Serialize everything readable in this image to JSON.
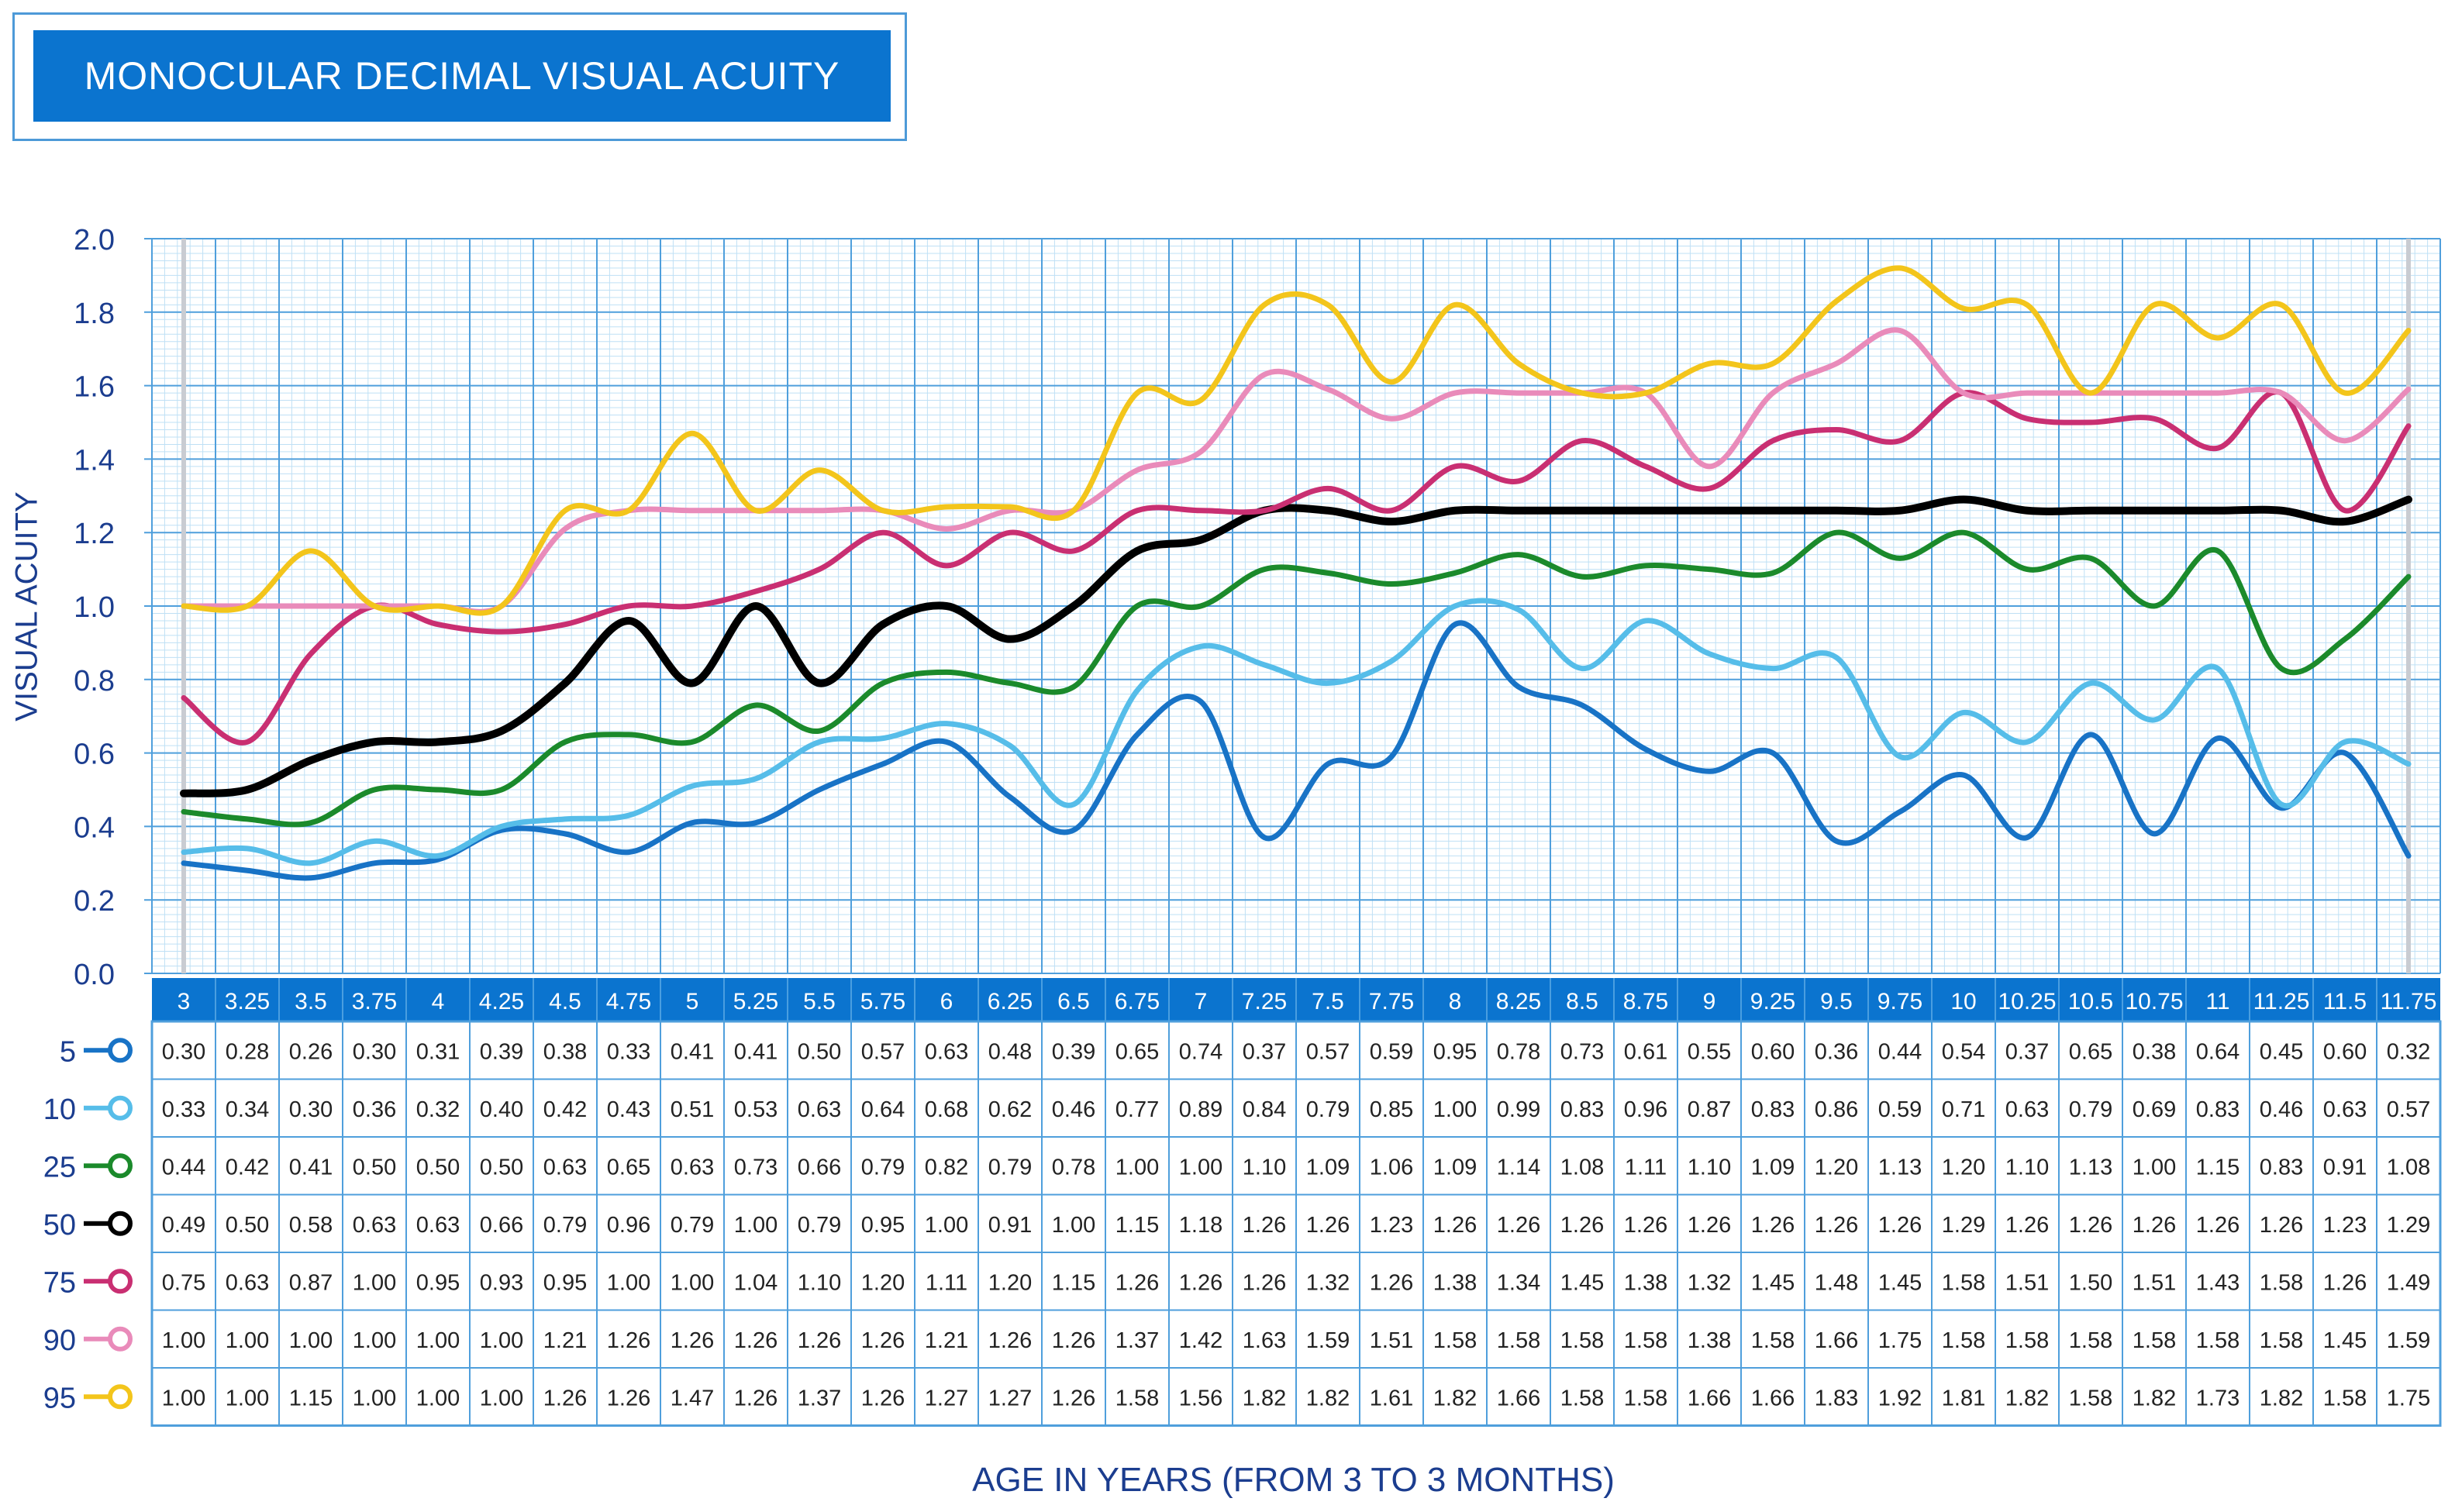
{
  "title": "MONOCULAR DECIMAL VISUAL ACUITY",
  "chart_data": {
    "type": "line",
    "title": "MONOCULAR DECIMAL VISUAL ACUITY",
    "xlabel": "AGE IN YEARS (FROM 3 TO 3 MONTHS)",
    "ylabel": "VISUAL ACUITY",
    "ylim": [
      0,
      2
    ],
    "yticks": [
      "0.0",
      "0.2",
      "0.4",
      "0.6",
      "0.8",
      "1.0",
      "1.2",
      "1.4",
      "1.6",
      "1.8",
      "2.0"
    ],
    "grid": true,
    "legend": "left of data table",
    "x": [
      "3",
      "3.25",
      "3.5",
      "3.75",
      "4",
      "4.25",
      "4.5",
      "4.75",
      "5",
      "5.25",
      "5.5",
      "5.75",
      "6",
      "6.25",
      "6.5",
      "6.75",
      "7",
      "7.25",
      "7.5",
      "7.75",
      "8",
      "8.25",
      "8.5",
      "8.75",
      "9",
      "9.25",
      "9.5",
      "9.75",
      "10",
      "10.25",
      "10.5",
      "10.75",
      "11",
      "11.25",
      "11.5",
      "11.75"
    ],
    "series": [
      {
        "name": "5",
        "color": "#1873c6",
        "values": [
          "0.30",
          "0.28",
          "0.26",
          "0.30",
          "0.31",
          "0.39",
          "0.38",
          "0.33",
          "0.41",
          "0.41",
          "0.50",
          "0.57",
          "0.63",
          "0.48",
          "0.39",
          "0.65",
          "0.74",
          "0.37",
          "0.57",
          "0.59",
          "0.95",
          "0.78",
          "0.73",
          "0.61",
          "0.55",
          "0.60",
          "0.36",
          "0.44",
          "0.54",
          "0.37",
          "0.65",
          "0.38",
          "0.64",
          "0.45",
          "0.60",
          "0.32"
        ]
      },
      {
        "name": "10",
        "color": "#56bde9",
        "values": [
          "0.33",
          "0.34",
          "0.30",
          "0.36",
          "0.32",
          "0.40",
          "0.42",
          "0.43",
          "0.51",
          "0.53",
          "0.63",
          "0.64",
          "0.68",
          "0.62",
          "0.46",
          "0.77",
          "0.89",
          "0.84",
          "0.79",
          "0.85",
          "1.00",
          "0.99",
          "0.83",
          "0.96",
          "0.87",
          "0.83",
          "0.86",
          "0.59",
          "0.71",
          "0.63",
          "0.79",
          "0.69",
          "0.83",
          "0.46",
          "0.63",
          "0.57"
        ]
      },
      {
        "name": "25",
        "color": "#1b8a2b",
        "values": [
          "0.44",
          "0.42",
          "0.41",
          "0.50",
          "0.50",
          "0.50",
          "0.63",
          "0.65",
          "0.63",
          "0.73",
          "0.66",
          "0.79",
          "0.82",
          "0.79",
          "0.78",
          "1.00",
          "1.00",
          "1.10",
          "1.09",
          "1.06",
          "1.09",
          "1.14",
          "1.08",
          "1.11",
          "1.10",
          "1.09",
          "1.20",
          "1.13",
          "1.20",
          "1.10",
          "1.13",
          "1.00",
          "1.15",
          "0.83",
          "0.91",
          "1.08"
        ]
      },
      {
        "name": "50",
        "color": "#000000",
        "values": [
          "0.49",
          "0.50",
          "0.58",
          "0.63",
          "0.63",
          "0.66",
          "0.79",
          "0.96",
          "0.79",
          "1.00",
          "0.79",
          "0.95",
          "1.00",
          "0.91",
          "1.00",
          "1.15",
          "1.18",
          "1.26",
          "1.26",
          "1.23",
          "1.26",
          "1.26",
          "1.26",
          "1.26",
          "1.26",
          "1.26",
          "1.26",
          "1.26",
          "1.29",
          "1.26",
          "1.26",
          "1.26",
          "1.26",
          "1.26",
          "1.23",
          "1.29"
        ]
      },
      {
        "name": "75",
        "color": "#c92f72",
        "values": [
          "0.75",
          "0.63",
          "0.87",
          "1.00",
          "0.95",
          "0.93",
          "0.95",
          "1.00",
          "1.00",
          "1.04",
          "1.10",
          "1.20",
          "1.11",
          "1.20",
          "1.15",
          "1.26",
          "1.26",
          "1.26",
          "1.32",
          "1.26",
          "1.38",
          "1.34",
          "1.45",
          "1.38",
          "1.32",
          "1.45",
          "1.48",
          "1.45",
          "1.58",
          "1.51",
          "1.50",
          "1.51",
          "1.43",
          "1.58",
          "1.26",
          "1.49"
        ]
      },
      {
        "name": "90",
        "color": "#e98bba",
        "values": [
          "1.00",
          "1.00",
          "1.00",
          "1.00",
          "1.00",
          "1.00",
          "1.21",
          "1.26",
          "1.26",
          "1.26",
          "1.26",
          "1.26",
          "1.21",
          "1.26",
          "1.26",
          "1.37",
          "1.42",
          "1.63",
          "1.59",
          "1.51",
          "1.58",
          "1.58",
          "1.58",
          "1.58",
          "1.38",
          "1.58",
          "1.66",
          "1.75",
          "1.58",
          "1.58",
          "1.58",
          "1.58",
          "1.58",
          "1.58",
          "1.45",
          "1.59"
        ]
      },
      {
        "name": "95",
        "color": "#f3c51b",
        "values": [
          "1.00",
          "1.00",
          "1.15",
          "1.00",
          "1.00",
          "1.00",
          "1.26",
          "1.26",
          "1.47",
          "1.26",
          "1.37",
          "1.26",
          "1.27",
          "1.27",
          "1.26",
          "1.58",
          "1.56",
          "1.82",
          "1.82",
          "1.61",
          "1.82",
          "1.66",
          "1.58",
          "1.58",
          "1.66",
          "1.66",
          "1.83",
          "1.92",
          "1.81",
          "1.82",
          "1.58",
          "1.82",
          "1.73",
          "1.82",
          "1.58",
          "1.75"
        ]
      }
    ]
  }
}
